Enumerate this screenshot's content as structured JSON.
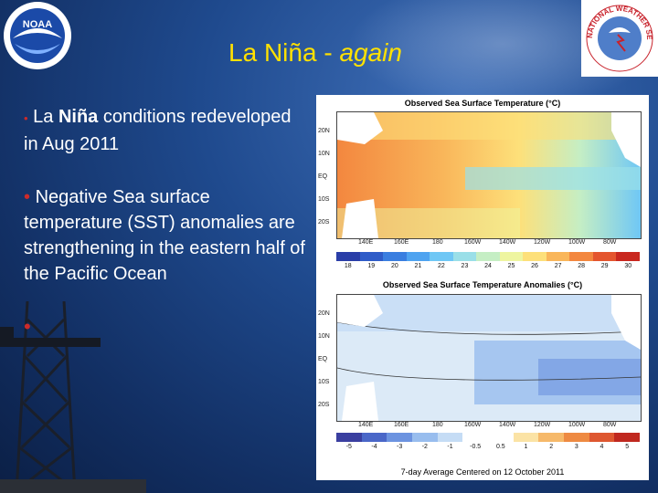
{
  "slide": {
    "title_main": "La Niña - ",
    "title_italic": "again",
    "bullet1_pre": "La ",
    "bullet1_bold": "Niña",
    "bullet1_post": " conditions redeveloped in Aug 2011",
    "bullet2": "Negative Sea surface temperature (SST) anomalies are strengthening in the eastern half of the Pacific Ocean",
    "bullet_marker": "•",
    "logo_left_text": "NOAA",
    "logo_right_text": "NATIONAL WEATHER SERVICE"
  },
  "maps": {
    "sst_title": "Observed Sea Surface Temperature (°C)",
    "anom_title": "Observed Sea Surface Temperature Anomalies (°C)",
    "footer": "7-day Average Centered on 12 October 2011",
    "lat_labels": [
      "20N",
      "10N",
      "EQ",
      "10S",
      "20S"
    ],
    "lon_labels": [
      "140E",
      "160E",
      "180",
      "160W",
      "140W",
      "120W",
      "100W",
      "80W"
    ],
    "sst_scale": [
      "18",
      "19",
      "20",
      "21",
      "22",
      "23",
      "24",
      "25",
      "26",
      "27",
      "28",
      "29",
      "30"
    ],
    "anom_scale": [
      "-5",
      "-4",
      "-3",
      "-2",
      "-1",
      "-0.5",
      "0.5",
      "1",
      "2",
      "3",
      "4",
      "5"
    ],
    "sst_colors": [
      "#2a3ea8",
      "#2f5cc8",
      "#3a7ee0",
      "#4fa3f0",
      "#6fc7f5",
      "#9adfe8",
      "#c5eec4",
      "#eef5a0",
      "#fde07a",
      "#f9b65a",
      "#f3873f",
      "#e4552e",
      "#c9281f"
    ],
    "anom_colors": [
      "#3a3fa0",
      "#4a67c8",
      "#6c93e0",
      "#98bdee",
      "#c5dcf5",
      "#ffffff",
      "#ffffff",
      "#fbe3a5",
      "#f6b96a",
      "#ee8a42",
      "#de5730",
      "#c0281f"
    ]
  }
}
